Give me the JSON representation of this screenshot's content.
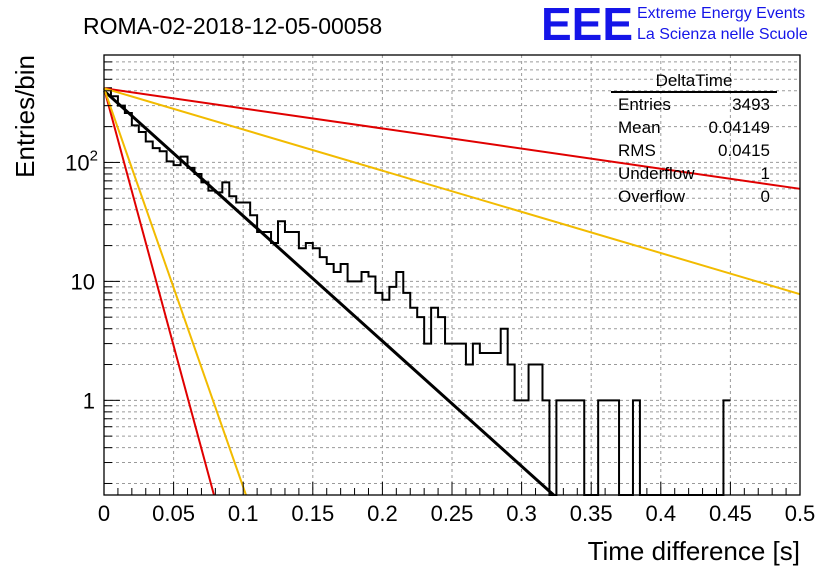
{
  "header": {
    "title": "ROMA-02-2018-12-05-00058",
    "logo_text": "EEE",
    "logo_line1": "Extreme Energy Events",
    "logo_line2": "La Scienza nelle Scuole"
  },
  "stats": {
    "name": "DeltaTime",
    "rows": [
      {
        "label": "Entries",
        "value": "3493"
      },
      {
        "label": "Mean",
        "value": "0.04149"
      },
      {
        "label": "RMS",
        "value": "0.0415"
      },
      {
        "label": "Underflow",
        "value": "1"
      },
      {
        "label": "Overflow",
        "value": "0"
      }
    ]
  },
  "colors": {
    "histogram": "#000000",
    "fit": "#000000",
    "red": "#e00000",
    "yellow": "#f2bb00",
    "grid": "#9a9a9a"
  },
  "chart_data": {
    "type": "line",
    "title": "ROMA-02-2018-12-05-00058",
    "xlabel": "Time difference [s]",
    "ylabel": "Entries/bin",
    "xlim": [
      0,
      0.5
    ],
    "ylim": [
      0.16,
      800
    ],
    "log_y": true,
    "grid": true,
    "x_ticks": [
      "0",
      "0.05",
      "0.1",
      "0.15",
      "0.2",
      "0.25",
      "0.3",
      "0.35",
      "0.4",
      "0.45",
      "0.5"
    ],
    "y_ticks": [
      {
        "value": 1,
        "label": "1"
      },
      {
        "value": 10,
        "label": "10"
      },
      {
        "value": 100,
        "label": "10^2"
      }
    ],
    "histogram": {
      "bin_width": 0.005,
      "counts": [
        420,
        360,
        300,
        260,
        205,
        180,
        150,
        132,
        124,
        102,
        95,
        112,
        90,
        80,
        68,
        58,
        56,
        68,
        52,
        46,
        46,
        36,
        26,
        26,
        21,
        32,
        26,
        26,
        19,
        21,
        19,
        16,
        14,
        12,
        14,
        10,
        10,
        12,
        11,
        8,
        7,
        9,
        12,
        8,
        6,
        5,
        3,
        6,
        5,
        3,
        3,
        3,
        2,
        3,
        2.5,
        2.5,
        2.5,
        4,
        2,
        1,
        1,
        2,
        2,
        1,
        0,
        1,
        1,
        1,
        1,
        0,
        0,
        1,
        1,
        1,
        0,
        0,
        1,
        0,
        0,
        0,
        0,
        0,
        0,
        0,
        0,
        0,
        0,
        0,
        0,
        1
      ]
    },
    "series": [
      {
        "name": "",
        "color": "#000000",
        "x": [
          0.0,
          0.323
        ],
        "y": [
          400,
          0.16
        ]
      },
      {
        "name": "",
        "color": "#e00000",
        "x": [
          0.0,
          0.5
        ],
        "y": [
          420,
          60
        ]
      },
      {
        "name": "",
        "color": "#e00000",
        "x": [
          0.0,
          0.079
        ],
        "y": [
          420,
          0.16
        ]
      },
      {
        "name": "",
        "color": "#f2bb00",
        "x": [
          0.0,
          0.5
        ],
        "y": [
          420,
          7.8
        ]
      },
      {
        "name": "",
        "color": "#f2bb00",
        "x": [
          0.0,
          0.102
        ],
        "y": [
          420,
          0.16
        ]
      }
    ]
  }
}
